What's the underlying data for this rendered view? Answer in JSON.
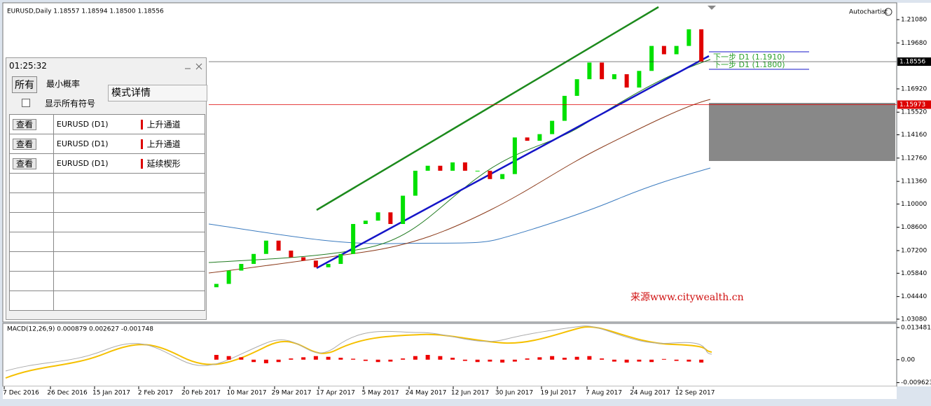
{
  "window": {
    "header": "EURUSD,Daily  1.18557 1.18594 1.18500 1.18556",
    "autochartist": "Autochartist",
    "watermark": "来源www.citywealth.cn",
    "forecasts": [
      "下一步 D1 (1.1910)",
      "下一步 D1 (1.1800)"
    ]
  },
  "date_labels": [
    "7 Dec 2016",
    "26 Dec 2016",
    "15 Jan 2017",
    "2 Feb 2017",
    "20 Feb 2017",
    "10 Mar 2017",
    "29 Mar 2017",
    "17 Apr 2017",
    "5 May 2017",
    "24 May 2017",
    "12 Jun 2017",
    "30 Jun 2017",
    "19 Jul 2017",
    "7 Aug 2017",
    "24 Aug 2017",
    "12 Sep 2017"
  ],
  "chart_data": [
    {
      "type": "candlestick",
      "closes": [
        1.05,
        1.052,
        1.06,
        1.064,
        1.07,
        1.078,
        1.072,
        1.068,
        1.066,
        1.062,
        1.064,
        1.07,
        1.088,
        1.09,
        1.095,
        1.088,
        1.105,
        1.12,
        1.123,
        1.12,
        1.125,
        1.12,
        1.12,
        1.115,
        1.118,
        1.14,
        1.138,
        1.142,
        1.15,
        1.165,
        1.175,
        1.185,
        1.175,
        1.178,
        1.17,
        1.18,
        1.195,
        1.19,
        1.195,
        1.205,
        1.1856
      ],
      "up_color": "#00e000",
      "down_color": "#e00000",
      "ylim": [
        1.0291,
        1.2205
      ],
      "yticks": [
        {
          "value": 1.2108,
          "label": "1.21080"
        },
        {
          "value": 1.1968,
          "label": "1.19680"
        },
        {
          "value": 1.1692,
          "label": "1.16920"
        },
        {
          "value": 1.1552,
          "label": "1.15520"
        },
        {
          "value": 1.1416,
          "label": "1.14160"
        },
        {
          "value": 1.1276,
          "label": "1.12760"
        },
        {
          "value": 1.1136,
          "label": "1.11360"
        },
        {
          "value": 1.1,
          "label": "1.10000"
        },
        {
          "value": 1.086,
          "label": "1.08600"
        },
        {
          "value": 1.072,
          "label": "1.07200"
        },
        {
          "value": 1.0584,
          "label": "1.05840"
        },
        {
          "value": 1.0444,
          "label": "1.04440"
        },
        {
          "value": 1.0308,
          "label": "1.03080"
        }
      ],
      "current_price": {
        "value": 1.18556,
        "label": "1.18556"
      },
      "level": {
        "value": 1.15973,
        "label": "1.15973"
      }
    },
    {
      "type": "bar",
      "title": "MACD(12,26,9) 0.000879 0.002627 -0.001748",
      "color": "#ee0000",
      "values": [
        0.002,
        0.0015,
        0.001,
        -0.001,
        -0.0015,
        -0.001,
        0.0005,
        0.001,
        0.0015,
        0.0012,
        0.0008,
        0.0004,
        -0.0005,
        -0.001,
        -0.0008,
        0.0005,
        0.0015,
        0.002,
        0.0015,
        0.0008,
        -0.0005,
        -0.001,
        -0.0008,
        -0.0012,
        -0.0008,
        0.0005,
        0.001,
        0.0015,
        0.0008,
        0.0012,
        0.0015,
        0.0005,
        -0.0008,
        -0.0012,
        -0.0008,
        -0.001,
        0.0003,
        -0.0005,
        -0.0008,
        -0.0012
      ],
      "ylim": [
        -0.0112,
        0.0152
      ],
      "yticks": [
        0.013481,
        {
          "value": 0,
          "label": "0.00"
        },
        -0.009623
      ]
    }
  ],
  "panel": {
    "time": "01:25:32",
    "filter": "所有",
    "min_prob": "最小概率",
    "show_all": "显示所有符号",
    "detail": "模式详情",
    "rows": [
      [
        "查看",
        "EURUSD (D1)",
        "上升通道"
      ],
      [
        "查看",
        "EURUSD (D1)",
        "上升通道"
      ],
      [
        "查看",
        "EURUSD (D1)",
        "延续楔形"
      ]
    ]
  }
}
